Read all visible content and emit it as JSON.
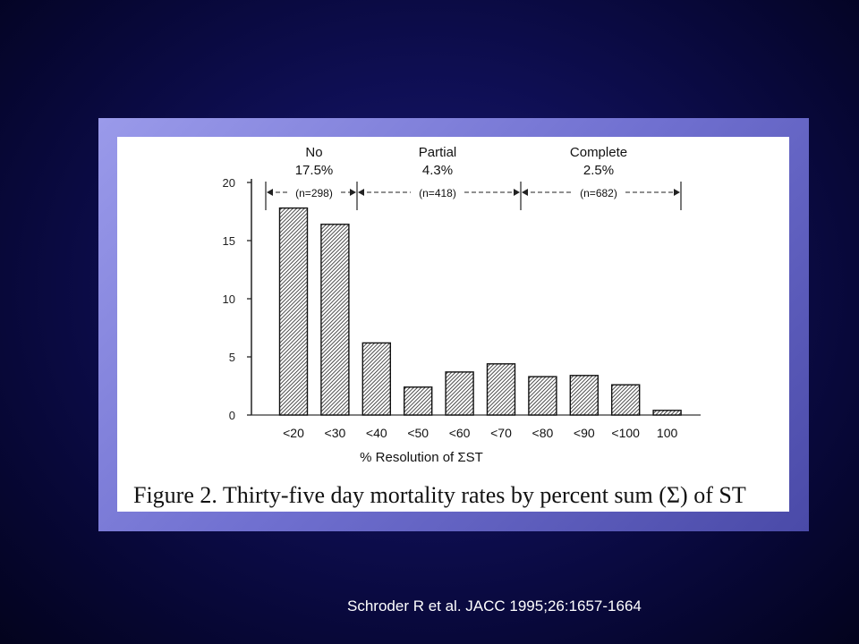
{
  "chart_data": {
    "type": "bar",
    "xlabel": "% Resolution of ΣST",
    "ylabel": "",
    "categories": [
      "<20",
      "<30",
      "<40",
      "<50",
      "<60",
      "<70",
      "<80",
      "<90",
      "<100",
      "100"
    ],
    "values": [
      17.8,
      16.4,
      6.2,
      2.4,
      3.7,
      4.4,
      3.3,
      3.4,
      2.6,
      0.4
    ],
    "ylim": [
      0,
      20
    ],
    "yticks": [
      "0",
      "5",
      "10",
      "15",
      "20"
    ],
    "grid": false,
    "groups": [
      {
        "name": "No",
        "rate": "17.5%",
        "n": "(n=298)"
      },
      {
        "name": "Partial",
        "rate": "4.3%",
        "n": "(n=418)"
      },
      {
        "name": "Complete",
        "rate": "2.5%",
        "n": "(n=682)"
      }
    ],
    "figure_caption": "Figure 2. Thirty-five day mortality rates by percent sum (Σ) of ST"
  },
  "colors": {
    "frame": "#7878d8",
    "bar_hatch": "#222222",
    "caption_text": "#ffffff"
  },
  "citation": "Schroder R et al. JACC 1995;26:1657-1664"
}
